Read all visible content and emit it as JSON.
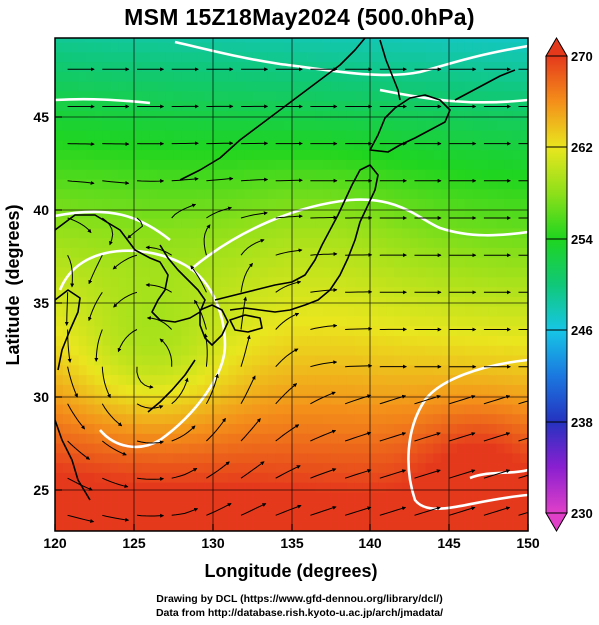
{
  "title": "MSM 15Z18May2024 (500.0hPa)",
  "x_axis": {
    "label": "Longitude (degrees)",
    "range": [
      120,
      150
    ],
    "ticks": [
      "120",
      "125",
      "130",
      "135",
      "140",
      "145",
      "150"
    ]
  },
  "y_axis": {
    "label": "Latitude  (degrees)",
    "range": [
      22.4,
      47.6
    ],
    "ticks": [
      "25",
      "30",
      "35",
      "40",
      "45"
    ]
  },
  "colorbar": {
    "range": [
      230,
      270
    ],
    "labels": [
      "270",
      "262",
      "254",
      "246",
      "238",
      "230"
    ],
    "stops": [
      {
        "v": 230,
        "color": "#e040c8"
      },
      {
        "v": 234,
        "color": "#8a1fd0"
      },
      {
        "v": 238,
        "color": "#2433c0"
      },
      {
        "v": 242,
        "color": "#1b78e0"
      },
      {
        "v": 246,
        "color": "#16c6e6"
      },
      {
        "v": 250,
        "color": "#10c878"
      },
      {
        "v": 254,
        "color": "#1fd51f"
      },
      {
        "v": 258,
        "color": "#8ee01a"
      },
      {
        "v": 262,
        "color": "#e9e61e"
      },
      {
        "v": 266,
        "color": "#f48f1a"
      },
      {
        "v": 270,
        "color": "#e5391c"
      }
    ]
  },
  "map_data": {
    "field": "temperature (K) at 500.0hPa with streamlines",
    "features": [
      "coastlines",
      "lat/lon grid",
      "white contour lines",
      "streamline arrows",
      "cyclonic circulation near 126E 30.5N"
    ]
  },
  "credits": {
    "line1": "Drawing by DCL (https://www.gfd-dennou.org/library/dcl/)",
    "line2": "Data from http://database.rish.kyoto-u.ac.jp/arch/jmadata/"
  }
}
